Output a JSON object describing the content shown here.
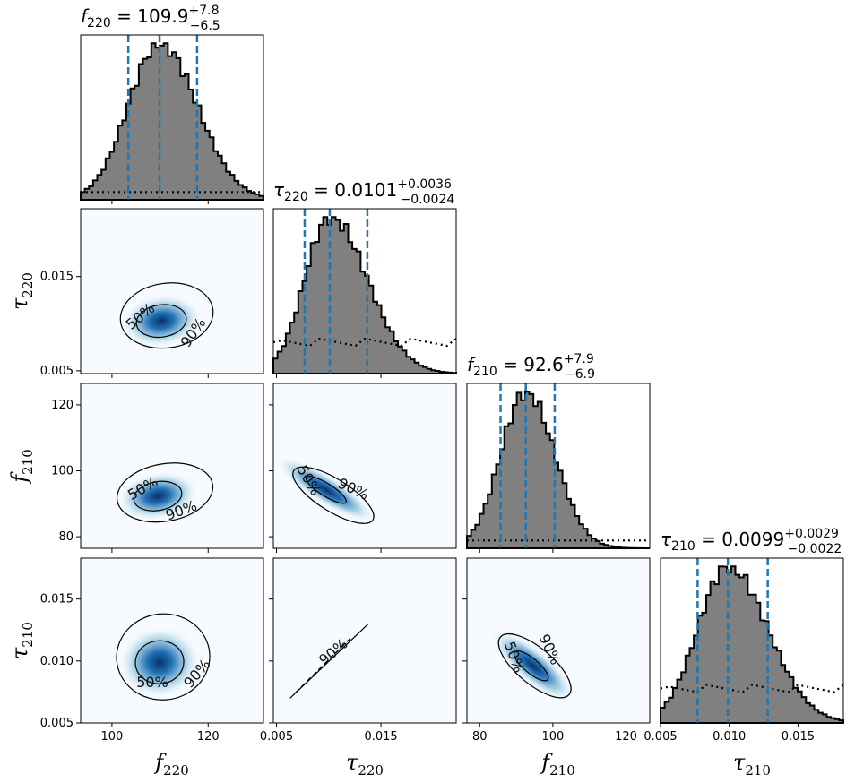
{
  "chart_data": {
    "type": "corner",
    "parameters": [
      {
        "key": "f220",
        "symbol": "f",
        "sub": "220",
        "ticks": [
          100,
          120
        ],
        "tick_labels": [
          "100",
          "120"
        ],
        "range": [
          93.5,
          131.5
        ]
      },
      {
        "key": "t220",
        "symbol": "τ",
        "sub": "220",
        "ticks": [
          0.005,
          0.015
        ],
        "tick_labels": [
          "0.005",
          "0.015"
        ],
        "range": [
          0.0047,
          0.0222
        ]
      },
      {
        "key": "f210",
        "symbol": "f",
        "sub": "210",
        "ticks": [
          80,
          100,
          120
        ],
        "tick_labels": [
          "80",
          "100",
          "120"
        ],
        "range": [
          76.5,
          126.5
        ]
      },
      {
        "key": "t210",
        "symbol": "τ",
        "sub": "210",
        "ticks": [
          0.005,
          0.01,
          0.015
        ],
        "tick_labels": [
          "0.005",
          "0.010",
          "0.015"
        ],
        "range": [
          0.005,
          0.0183
        ]
      }
    ],
    "titles": [
      {
        "symbol": "f",
        "sub": "220",
        "eq": " = 109.9",
        "plus": "+7.8",
        "minus": "−6.5"
      },
      {
        "symbol": "τ",
        "sub": "220",
        "eq": " = 0.0101",
        "plus": "+0.0036",
        "minus": "−0.0024"
      },
      {
        "symbol": "f",
        "sub": "210",
        "eq": " = 92.6",
        "plus": "+7.9",
        "minus": "−6.9"
      },
      {
        "symbol": "τ",
        "sub": "210",
        "eq": " = 0.0099",
        "plus": "+0.0029",
        "minus": "−0.0022"
      }
    ],
    "marginals": [
      {
        "median": 109.9,
        "lower": 103.4,
        "upper": 117.7,
        "prior_level": 0.05
      },
      {
        "median": 0.0101,
        "lower": 0.0077,
        "upper": 0.0137,
        "prior_level": 0.2
      },
      {
        "median": 92.6,
        "lower": 85.7,
        "upper": 100.5,
        "prior_level": 0.05
      },
      {
        "median": 0.0099,
        "lower": 0.0077,
        "upper": 0.0128,
        "prior_level": 0.22
      }
    ],
    "contour_labels": [
      "50%",
      "90%"
    ],
    "colors": {
      "hist_fill": "#808080",
      "quantile": "#1f77b4",
      "density": "#08519c"
    }
  }
}
